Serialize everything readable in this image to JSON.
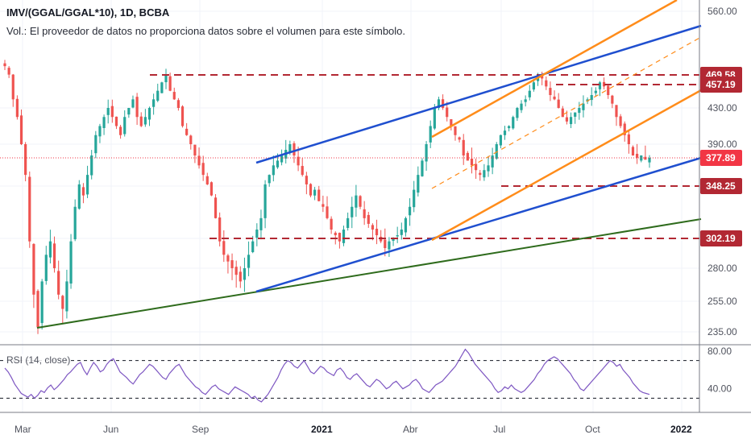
{
  "header": {
    "title": "IMV/(GGAL/GGAL*10), 1D, BCBA",
    "volume_note": "Vol.: El proveedor de datos no proporciona datos sobre el volumen para este símbolo."
  },
  "rsi": {
    "label": "RSI (14, close)",
    "levels": [
      70,
      30
    ],
    "ticks": [
      "80.00",
      "40.00"
    ],
    "values": [
      62,
      58,
      52,
      45,
      40,
      35,
      33,
      31,
      34,
      30,
      33,
      38,
      36,
      41,
      44,
      39,
      42,
      46,
      50,
      55,
      58,
      62,
      66,
      68,
      60,
      55,
      62,
      68,
      64,
      58,
      60,
      66,
      70,
      72,
      65,
      58,
      55,
      52,
      48,
      45,
      50,
      55,
      58,
      62,
      66,
      64,
      60,
      56,
      52,
      50,
      56,
      60,
      64,
      66,
      60,
      54,
      50,
      46,
      42,
      40,
      36,
      34,
      38,
      42,
      44,
      40,
      38,
      36,
      34,
      38,
      42,
      40,
      38,
      36,
      34,
      30,
      32,
      28,
      26,
      30,
      34,
      40,
      46,
      52,
      60,
      66,
      70,
      68,
      64,
      62,
      66,
      70,
      64,
      58,
      56,
      60,
      64,
      62,
      58,
      56,
      54,
      60,
      62,
      58,
      52,
      50,
      54,
      56,
      52,
      48,
      44,
      42,
      46,
      50,
      48,
      44,
      40,
      42,
      46,
      48,
      44,
      40,
      42,
      44,
      48,
      50,
      46,
      40,
      38,
      36,
      40,
      44,
      46,
      48,
      52,
      56,
      60,
      64,
      70,
      76,
      82,
      78,
      72,
      66,
      62,
      58,
      54,
      50,
      46,
      40,
      36,
      38,
      42,
      40,
      44,
      40,
      38,
      36,
      38,
      42,
      46,
      50,
      56,
      60,
      66,
      70,
      72,
      74,
      72,
      68,
      64,
      60,
      56,
      50,
      46,
      40,
      38,
      42,
      46,
      50,
      54,
      58,
      62,
      66,
      70,
      68,
      64,
      66,
      60,
      56,
      52,
      46,
      42,
      38,
      36,
      35,
      34
    ]
  },
  "chart_data": {
    "type": "candlestick",
    "title": "IMV/(GGAL/GGAL*10), 1D, BCBA",
    "x_ticks": [
      "Mar",
      "Jun",
      "Sep",
      "2021",
      "Abr",
      "Jul",
      "Oct",
      "2022"
    ],
    "y_ticks": [
      "560.00",
      "430.00",
      "390.00",
      "348.25",
      "280.00",
      "255.00",
      "235.00"
    ],
    "price_labels": [
      {
        "value": "469.58",
        "color": "#b22833"
      },
      {
        "value": "457.19",
        "color": "#b22833"
      },
      {
        "value": "377.89",
        "color": "#f23645"
      },
      {
        "value": "348.25",
        "color": "#b22833"
      },
      {
        "value": "302.19",
        "color": "#b22833"
      }
    ],
    "close_series": [
      482,
      470,
      440,
      420,
      390,
      360,
      300,
      260,
      238,
      270,
      290,
      300,
      280,
      260,
      250,
      270,
      300,
      330,
      350,
      340,
      360,
      380,
      400,
      410,
      420,
      430,
      420,
      410,
      400,
      420,
      430,
      440,
      420,
      410,
      420,
      430,
      440,
      450,
      460,
      470,
      450,
      440,
      430,
      410,
      400,
      390,
      380,
      370,
      360,
      350,
      340,
      320,
      300,
      290,
      285,
      280,
      275,
      270,
      280,
      290,
      300,
      310,
      320,
      350,
      360,
      370,
      375,
      380,
      385,
      390,
      380,
      370,
      360,
      350,
      340,
      345,
      335,
      330,
      320,
      310,
      305,
      300,
      310,
      320,
      330,
      340,
      330,
      320,
      315,
      310,
      305,
      300,
      295,
      300,
      302,
      305,
      310,
      320,
      330,
      345,
      360,
      375,
      390,
      410,
      430,
      440,
      430,
      420,
      410,
      400,
      395,
      380,
      375,
      370,
      365,
      360,
      365,
      370,
      380,
      390,
      400,
      405,
      410,
      420,
      430,
      435,
      440,
      450,
      460,
      470,
      465,
      455,
      445,
      440,
      430,
      420,
      415,
      420,
      425,
      430,
      435,
      440,
      445,
      450,
      460,
      455,
      445,
      435,
      420,
      410,
      400,
      390,
      380,
      378,
      380,
      376,
      378
    ]
  },
  "legend": {
    "series_colors": {
      "up": "#26a69a",
      "down": "#ef5350",
      "channel_blue": "#1f4fcf",
      "channel_orange": "#ff8c1a",
      "support_green": "#2e6b1c",
      "resistance_red": "#b22833",
      "rsi_line": "#7e57c2"
    }
  }
}
